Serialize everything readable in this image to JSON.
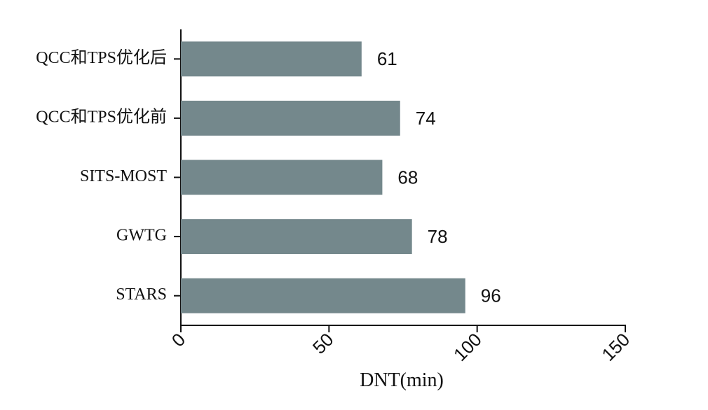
{
  "chart_data": {
    "type": "barh",
    "categories": [
      "QCC和TPS优化后",
      "QCC和TPS优化前",
      "SITS-MOST",
      "GWTG",
      "STARS"
    ],
    "values": [
      61,
      74,
      68,
      78,
      96
    ],
    "color": "#74888c",
    "xlabel": "DNT(min)",
    "xlim": [
      0,
      150
    ],
    "xticks": [
      0,
      50,
      100,
      150
    ]
  }
}
